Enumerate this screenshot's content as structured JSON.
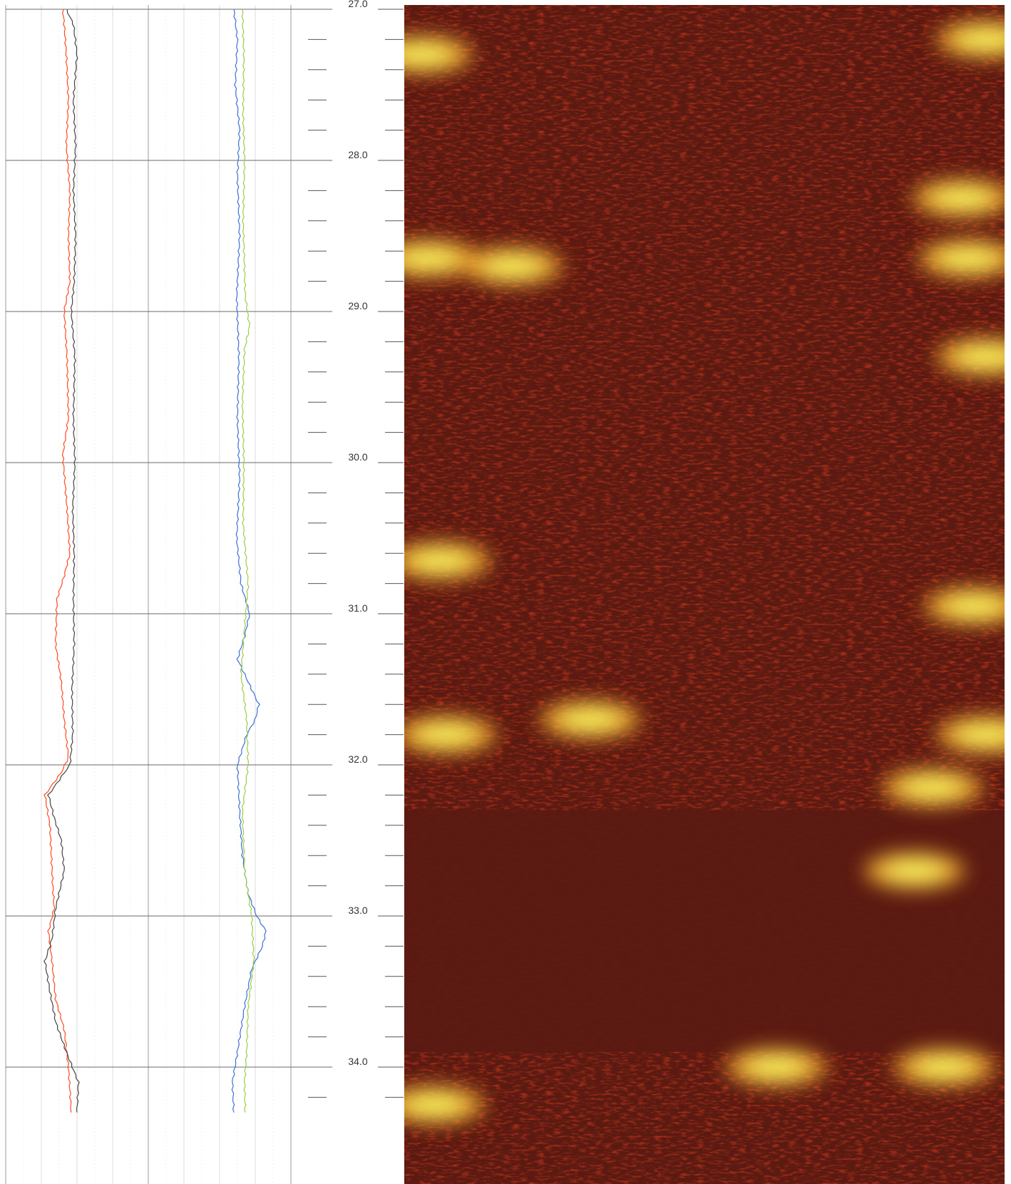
{
  "chart_data": {
    "type": "line",
    "title": "",
    "xlabel": "",
    "ylabel": "",
    "ylim": [
      27.0,
      34.3
    ],
    "y_reversed": true,
    "depth_ticks": [
      "27.0",
      "28.0",
      "29.0",
      "30.0",
      "31.0",
      "32.0",
      "33.0",
      "34.0"
    ],
    "minor_tick_step": 0.2,
    "grid": true,
    "tracks": [
      {
        "series": [
          {
            "color": "#ff4a1e",
            "depth": [
              27.0,
              27.1,
              27.3,
              27.6,
              27.9,
              28.2,
              28.5,
              28.8,
              29.0,
              29.3,
              29.7,
              29.95,
              30.3,
              30.6,
              30.75,
              30.9,
              31.2,
              31.45,
              31.7,
              31.95,
              32.05,
              32.2,
              32.4,
              32.6,
              32.8,
              32.95,
              33.1,
              33.3,
              33.55,
              33.75,
              34.0,
              34.3
            ],
            "value": [
              0.8,
              0.82,
              0.85,
              0.88,
              0.85,
              0.9,
              0.88,
              0.9,
              0.82,
              0.86,
              0.88,
              0.8,
              0.86,
              0.9,
              0.82,
              0.72,
              0.7,
              0.78,
              0.82,
              0.88,
              0.78,
              0.55,
              0.62,
              0.64,
              0.66,
              0.68,
              0.6,
              0.65,
              0.7,
              0.82,
              0.88,
              0.92
            ]
          },
          {
            "color": "#444444",
            "depth": [
              27.0,
              27.1,
              27.3,
              27.6,
              27.9,
              28.2,
              28.5,
              28.8,
              29.0,
              29.3,
              29.7,
              30.0,
              30.3,
              30.6,
              30.9,
              31.2,
              31.5,
              31.8,
              32.0,
              32.2,
              32.35,
              32.5,
              32.7,
              32.95,
              33.15,
              33.3,
              33.5,
              33.7,
              33.9,
              34.1,
              34.3
            ],
            "value": [
              0.85,
              0.95,
              1.0,
              0.95,
              0.98,
              0.95,
              0.98,
              0.96,
              0.92,
              0.97,
              0.95,
              0.97,
              0.94,
              0.96,
              0.95,
              0.96,
              0.93,
              0.94,
              0.9,
              0.6,
              0.68,
              0.78,
              0.82,
              0.7,
              0.65,
              0.55,
              0.62,
              0.7,
              0.85,
              1.02,
              1.0
            ]
          }
        ]
      },
      {
        "series": [
          {
            "color": "#3f6fd6",
            "depth": [
              27.0,
              27.2,
              27.5,
              27.8,
              28.1,
              28.5,
              28.9,
              29.3,
              29.7,
              30.1,
              30.5,
              30.8,
              31.0,
              31.15,
              31.3,
              31.5,
              31.6,
              31.7,
              31.8,
              32.0,
              32.3,
              32.6,
              32.85,
              33.0,
              33.1,
              33.2,
              33.35,
              33.6,
              33.9,
              34.1,
              34.3
            ],
            "value": [
              3.2,
              3.25,
              3.22,
              3.28,
              3.25,
              3.28,
              3.24,
              3.27,
              3.25,
              3.28,
              3.24,
              3.3,
              3.42,
              3.35,
              3.25,
              3.45,
              3.55,
              3.5,
              3.38,
              3.25,
              3.28,
              3.32,
              3.4,
              3.52,
              3.65,
              3.6,
              3.45,
              3.35,
              3.25,
              3.18,
              3.2
            ]
          },
          {
            "color": "#9acd4a",
            "depth": [
              27.0,
              27.3,
              27.7,
              28.0,
              28.4,
              28.9,
              29.1,
              29.25,
              29.6,
              30.0,
              30.4,
              30.8,
              31.1,
              31.4,
              31.7,
              32.0,
              32.3,
              32.7,
              33.0,
              33.3,
              33.6,
              33.9,
              34.1,
              34.3
            ],
            "value": [
              3.32,
              3.34,
              3.33,
              3.35,
              3.33,
              3.36,
              3.42,
              3.35,
              3.32,
              3.34,
              3.33,
              3.4,
              3.35,
              3.3,
              3.38,
              3.4,
              3.32,
              3.35,
              3.45,
              3.48,
              3.4,
              3.38,
              3.35,
              3.36
            ]
          }
        ]
      }
    ],
    "image_log": {
      "colormap": "dark-red-orange-yellow",
      "colors": [
        "#5a1a12",
        "#b02a16",
        "#e8542a",
        "#f5b030",
        "#f4f25e"
      ],
      "bright_zones": [
        {
          "depth": 27.3,
          "position": 0.03
        },
        {
          "depth": 27.2,
          "position": 0.97
        },
        {
          "depth": 28.25,
          "position": 0.93
        },
        {
          "depth": 28.65,
          "position": 0.04
        },
        {
          "depth": 28.7,
          "position": 0.18
        },
        {
          "depth": 28.65,
          "position": 0.94
        },
        {
          "depth": 29.3,
          "position": 0.97
        },
        {
          "depth": 30.65,
          "position": 0.06
        },
        {
          "depth": 30.95,
          "position": 0.95
        },
        {
          "depth": 31.8,
          "position": 0.07
        },
        {
          "depth": 31.7,
          "position": 0.31
        },
        {
          "depth": 31.8,
          "position": 0.97
        },
        {
          "depth": 32.15,
          "position": 0.88
        },
        {
          "depth": 32.7,
          "position": 0.85
        },
        {
          "depth": 34.0,
          "position": 0.62
        },
        {
          "depth": 34.0,
          "position": 0.9
        },
        {
          "depth": 34.25,
          "position": 0.05
        }
      ],
      "dark_bands": [
        {
          "from": 32.3,
          "to": 33.9
        }
      ]
    }
  }
}
